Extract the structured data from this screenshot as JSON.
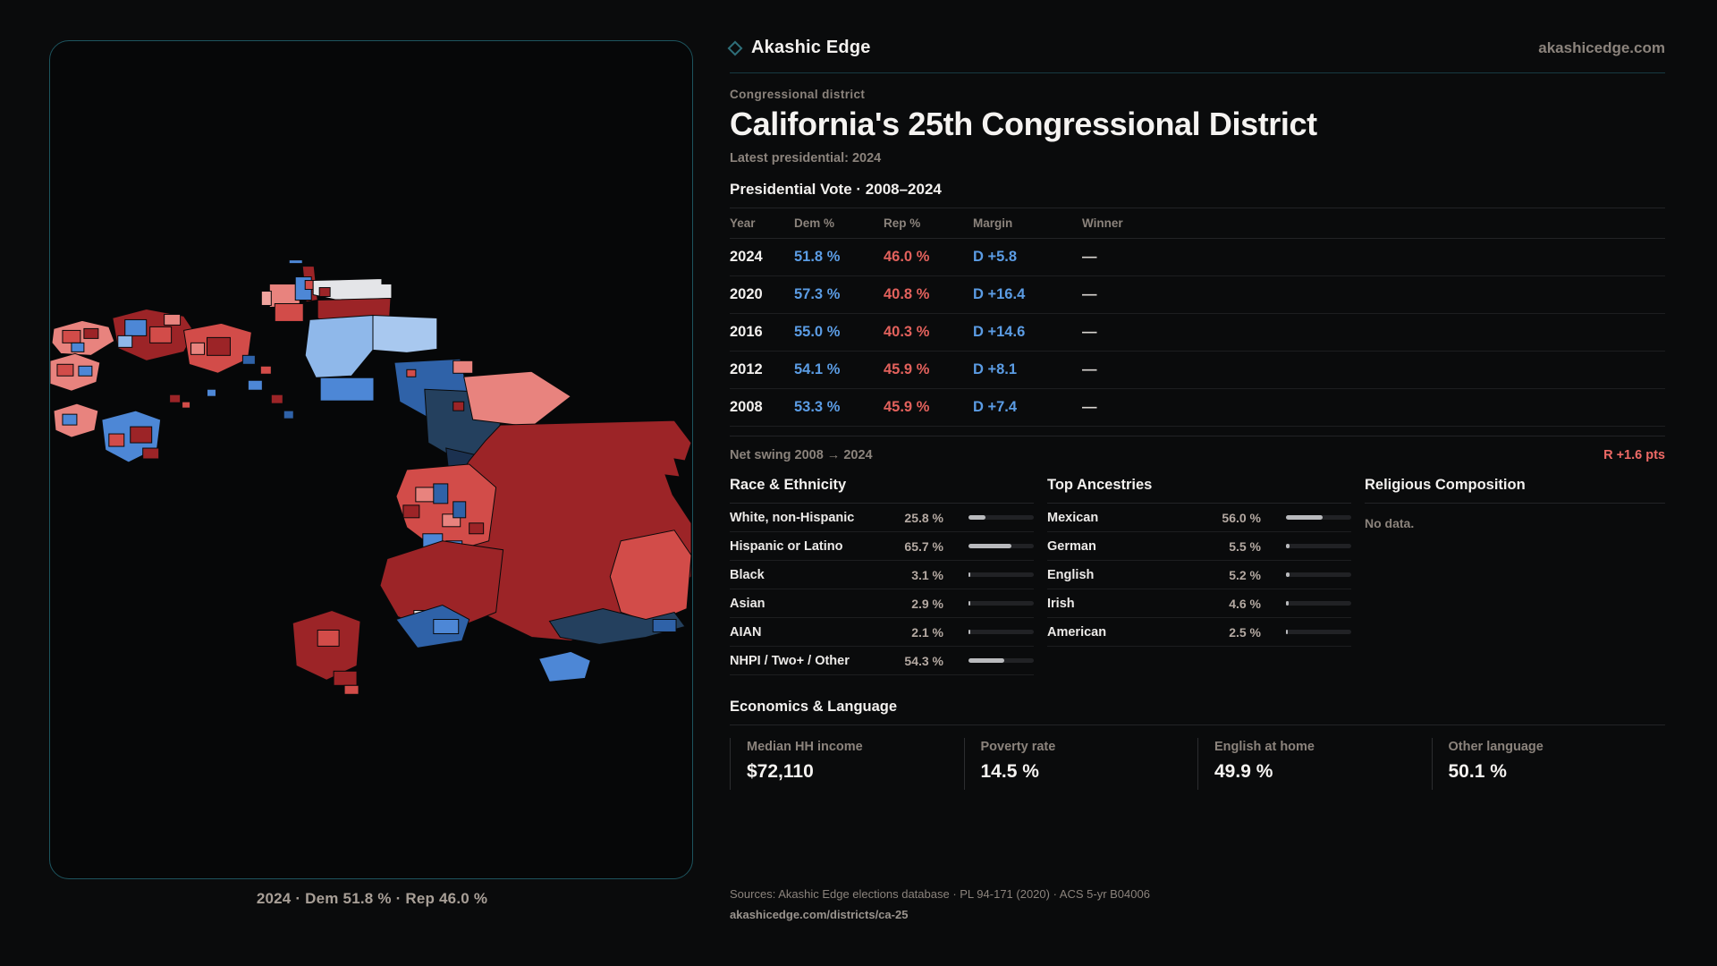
{
  "brand": {
    "name": "Akashic Edge",
    "domain": "akashicedge.com"
  },
  "page": {
    "eyebrow": "Congressional district",
    "title": "California's 25th Congressional District",
    "subtitle": "Latest presidential: 2024"
  },
  "map": {
    "caption": "2024 · Dem 51.8 % · Rep 46.0 %"
  },
  "vote_table": {
    "title": "Presidential Vote · 2008–2024",
    "columns": [
      "Year",
      "Dem %",
      "Rep %",
      "Margin",
      "Winner"
    ],
    "rows": [
      {
        "year": "2024",
        "dem": "51.8 %",
        "rep": "46.0 %",
        "margin": "D +5.8",
        "winner": "—"
      },
      {
        "year": "2020",
        "dem": "57.3 %",
        "rep": "40.8 %",
        "margin": "D +16.4",
        "winner": "—"
      },
      {
        "year": "2016",
        "dem": "55.0 %",
        "rep": "40.3 %",
        "margin": "D +14.6",
        "winner": "—"
      },
      {
        "year": "2012",
        "dem": "54.1 %",
        "rep": "45.9 %",
        "margin": "D +8.1",
        "winner": "—"
      },
      {
        "year": "2008",
        "dem": "53.3 %",
        "rep": "45.9 %",
        "margin": "D +7.4",
        "winner": "—"
      }
    ]
  },
  "net_swing": {
    "label": "Net swing 2008 → 2024",
    "value": "R +1.6 pts"
  },
  "race_ethnicity": {
    "title": "Race & Ethnicity",
    "rows": [
      {
        "label": "White, non-Hispanic",
        "value": "25.8 %",
        "pct": 25.8
      },
      {
        "label": "Hispanic or Latino",
        "value": "65.7 %",
        "pct": 65.7
      },
      {
        "label": "Black",
        "value": "3.1 %",
        "pct": 3.1
      },
      {
        "label": "Asian",
        "value": "2.9 %",
        "pct": 2.9
      },
      {
        "label": "AIAN",
        "value": "2.1 %",
        "pct": 2.1
      },
      {
        "label": "NHPI / Two+ / Other",
        "value": "54.3 %",
        "pct": 54.3
      }
    ]
  },
  "ancestries": {
    "title": "Top Ancestries",
    "rows": [
      {
        "label": "Mexican",
        "value": "56.0 %",
        "pct": 56.0
      },
      {
        "label": "German",
        "value": "5.5 %",
        "pct": 5.5
      },
      {
        "label": "English",
        "value": "5.2 %",
        "pct": 5.2
      },
      {
        "label": "Irish",
        "value": "4.6 %",
        "pct": 4.6
      },
      {
        "label": "American",
        "value": "2.5 %",
        "pct": 2.5
      }
    ]
  },
  "religion": {
    "title": "Religious Composition",
    "empty": "No data."
  },
  "economics": {
    "title": "Economics & Language",
    "stats": [
      {
        "label": "Median HH income",
        "value": "$72,110"
      },
      {
        "label": "Poverty rate",
        "value": "14.5 %"
      },
      {
        "label": "English at home",
        "value": "49.9 %"
      },
      {
        "label": "Other language",
        "value": "50.1 %"
      }
    ]
  },
  "footer": {
    "sources": "Sources: Akashic Edge elections database · PL 94-171 (2020) · ACS 5-yr B04006",
    "permalink": "akashicedge.com/districts/ca-25"
  },
  "colors": {
    "background": "#0a0b0c",
    "panel_border": "#1d545e",
    "accent_teal": "#2e6e78",
    "dem_blue": "#5b9ce4",
    "rep_red": "#e2615c",
    "swing_red": "#ef6a66",
    "text_primary": "#f3f1ef",
    "text_muted": "#8b837c",
    "bar_fill": "#b9babd",
    "bar_track": "#212225"
  }
}
